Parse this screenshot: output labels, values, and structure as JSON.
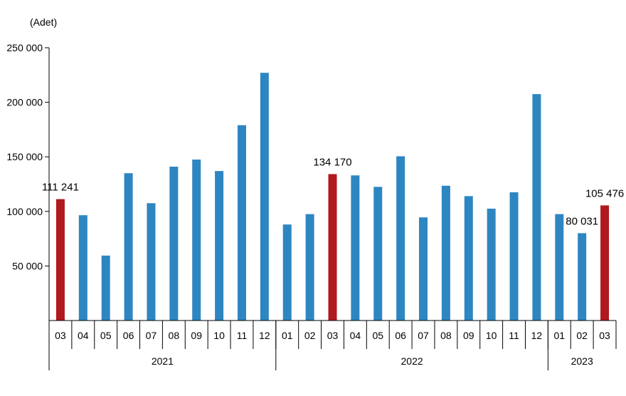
{
  "chart_data": {
    "type": "bar",
    "unit_label": "(Adet)",
    "ylim": [
      0,
      250000
    ],
    "yticks": [
      {
        "value": 50000,
        "label": "50 000"
      },
      {
        "value": 100000,
        "label": "100 000"
      },
      {
        "value": 150000,
        "label": "150 000"
      },
      {
        "value": 200000,
        "label": "200 000"
      },
      {
        "value": 250000,
        "label": "250 000"
      }
    ],
    "grid": false,
    "colors": {
      "default": "#2e86c1",
      "highlight": "#b0191e"
    },
    "bars": [
      {
        "year": "2021",
        "month": "03",
        "value": 111241,
        "highlight": true,
        "label": "111 241"
      },
      {
        "year": "2021",
        "month": "04",
        "value": 96500,
        "highlight": false,
        "label": ""
      },
      {
        "year": "2021",
        "month": "05",
        "value": 59500,
        "highlight": false,
        "label": ""
      },
      {
        "year": "2021",
        "month": "06",
        "value": 135000,
        "highlight": false,
        "label": ""
      },
      {
        "year": "2021",
        "month": "07",
        "value": 107500,
        "highlight": false,
        "label": ""
      },
      {
        "year": "2021",
        "month": "08",
        "value": 141000,
        "highlight": false,
        "label": ""
      },
      {
        "year": "2021",
        "month": "09",
        "value": 147500,
        "highlight": false,
        "label": ""
      },
      {
        "year": "2021",
        "month": "10",
        "value": 137000,
        "highlight": false,
        "label": ""
      },
      {
        "year": "2021",
        "month": "11",
        "value": 179000,
        "highlight": false,
        "label": ""
      },
      {
        "year": "2021",
        "month": "12",
        "value": 227000,
        "highlight": false,
        "label": ""
      },
      {
        "year": "2022",
        "month": "01",
        "value": 88000,
        "highlight": false,
        "label": ""
      },
      {
        "year": "2022",
        "month": "02",
        "value": 97500,
        "highlight": false,
        "label": ""
      },
      {
        "year": "2022",
        "month": "03",
        "value": 134170,
        "highlight": true,
        "label": "134 170"
      },
      {
        "year": "2022",
        "month": "04",
        "value": 133000,
        "highlight": false,
        "label": ""
      },
      {
        "year": "2022",
        "month": "05",
        "value": 122500,
        "highlight": false,
        "label": ""
      },
      {
        "year": "2022",
        "month": "06",
        "value": 150500,
        "highlight": false,
        "label": ""
      },
      {
        "year": "2022",
        "month": "07",
        "value": 94500,
        "highlight": false,
        "label": ""
      },
      {
        "year": "2022",
        "month": "08",
        "value": 123500,
        "highlight": false,
        "label": ""
      },
      {
        "year": "2022",
        "month": "09",
        "value": 114000,
        "highlight": false,
        "label": ""
      },
      {
        "year": "2022",
        "month": "10",
        "value": 102500,
        "highlight": false,
        "label": ""
      },
      {
        "year": "2022",
        "month": "11",
        "value": 117500,
        "highlight": false,
        "label": ""
      },
      {
        "year": "2022",
        "month": "12",
        "value": 207500,
        "highlight": false,
        "label": ""
      },
      {
        "year": "2023",
        "month": "01",
        "value": 97500,
        "highlight": false,
        "label": ""
      },
      {
        "year": "2023",
        "month": "02",
        "value": 80031,
        "highlight": false,
        "label": "80 031"
      },
      {
        "year": "2023",
        "month": "03",
        "value": 105476,
        "highlight": true,
        "label": "105 476"
      }
    ],
    "years": [
      {
        "label": "2021",
        "count": 10
      },
      {
        "label": "2022",
        "count": 12
      },
      {
        "label": "2023",
        "count": 3
      }
    ]
  }
}
